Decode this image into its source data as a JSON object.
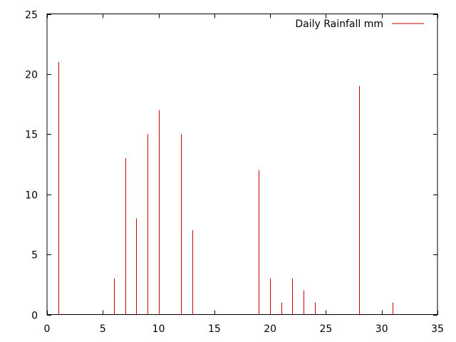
{
  "chart_data": {
    "type": "bar",
    "style": "impulses",
    "x": [
      1,
      6,
      7,
      8,
      9,
      10,
      12,
      13,
      19,
      20,
      21,
      22,
      23,
      24,
      28,
      31
    ],
    "series": [
      {
        "name": "Daily Rainfall mm",
        "values": [
          21,
          3,
          13,
          8,
          15,
          17,
          15,
          7,
          12,
          3,
          1,
          3,
          2,
          1,
          19,
          1
        ],
        "color": "#cc0000"
      }
    ],
    "title": "",
    "xlabel": "",
    "ylabel": "",
    "xlim": [
      0,
      35
    ],
    "ylim": [
      0,
      25
    ],
    "x_ticks": [
      0,
      5,
      10,
      15,
      20,
      25,
      30,
      35
    ],
    "y_ticks": [
      0,
      5,
      10,
      15,
      20,
      25
    ],
    "grid": false,
    "legend_position": "top-right"
  }
}
